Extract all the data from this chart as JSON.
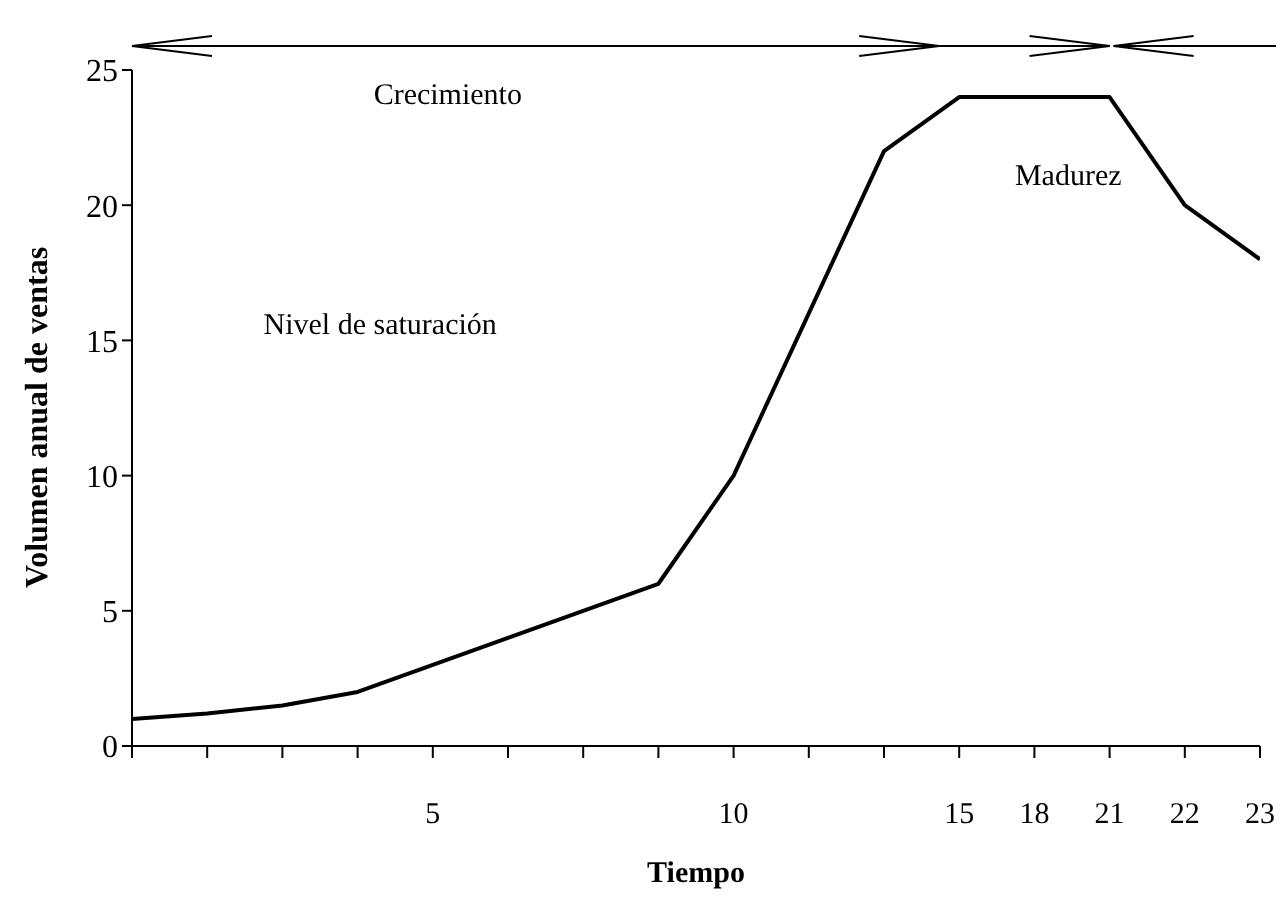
{
  "chart_data": {
    "type": "line",
    "xlabel": "Tiempo",
    "ylabel": "Volumen anual de ventas",
    "categories": [
      null,
      null,
      null,
      null,
      "5",
      null,
      null,
      null,
      "10",
      null,
      null,
      "15",
      "18",
      "21",
      "22",
      "23"
    ],
    "series": [
      {
        "color": "#000000",
        "values": [
          1,
          1.2,
          1.5,
          2,
          3,
          4,
          5,
          6,
          10,
          16,
          22,
          24,
          24,
          24,
          20,
          18
        ]
      }
    ],
    "ylim": [
      0,
      25
    ],
    "yticks": [
      0,
      5,
      10,
      15,
      20,
      25
    ],
    "marker": "none",
    "line_style": "solid",
    "annotations": [
      "Crecimiento",
      "Madurez",
      "Nivel de saturación"
    ]
  }
}
